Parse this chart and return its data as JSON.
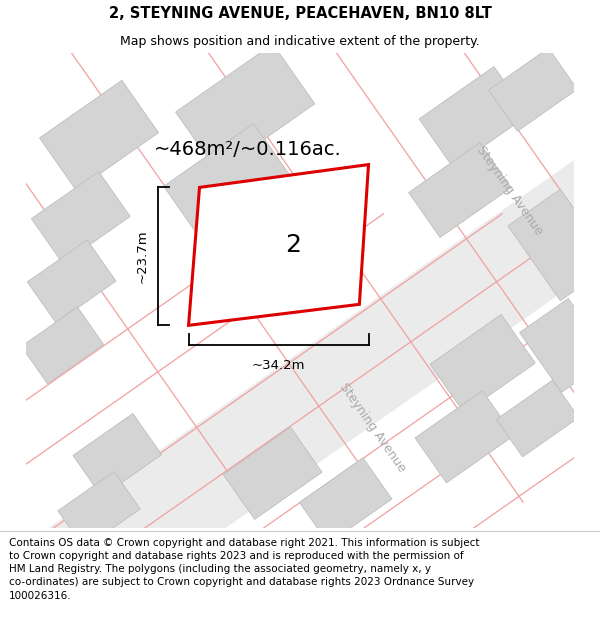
{
  "title": "2, STEYNING AVENUE, PEACEHAVEN, BN10 8LT",
  "subtitle": "Map shows position and indicative extent of the property.",
  "footer": "Contains OS data © Crown copyright and database right 2021. This information is subject to Crown copyright and database rights 2023 and is reproduced with the permission of HM Land Registry. The polygons (including the associated geometry, namely x, y co-ordinates) are subject to Crown copyright and database rights 2023 Ordnance Survey 100026316.",
  "area_label": "~468m²/~0.116ac.",
  "width_label": "~34.2m",
  "height_label": "~23.7m",
  "plot_number": "2",
  "map_bg": "#f7f7f7",
  "building_color": "#d4d4d4",
  "building_outline": "#c8c8c8",
  "red_line_color": "#dd0000",
  "road_line_color": "#f0a0a0",
  "street_label_color": "#aaaaaa",
  "title_fontsize": 10.5,
  "subtitle_fontsize": 9,
  "footer_fontsize": 7.5,
  "area_fontsize": 14,
  "dim_fontsize": 9.5,
  "plot_num_fontsize": 18,
  "street_fontsize": 9
}
